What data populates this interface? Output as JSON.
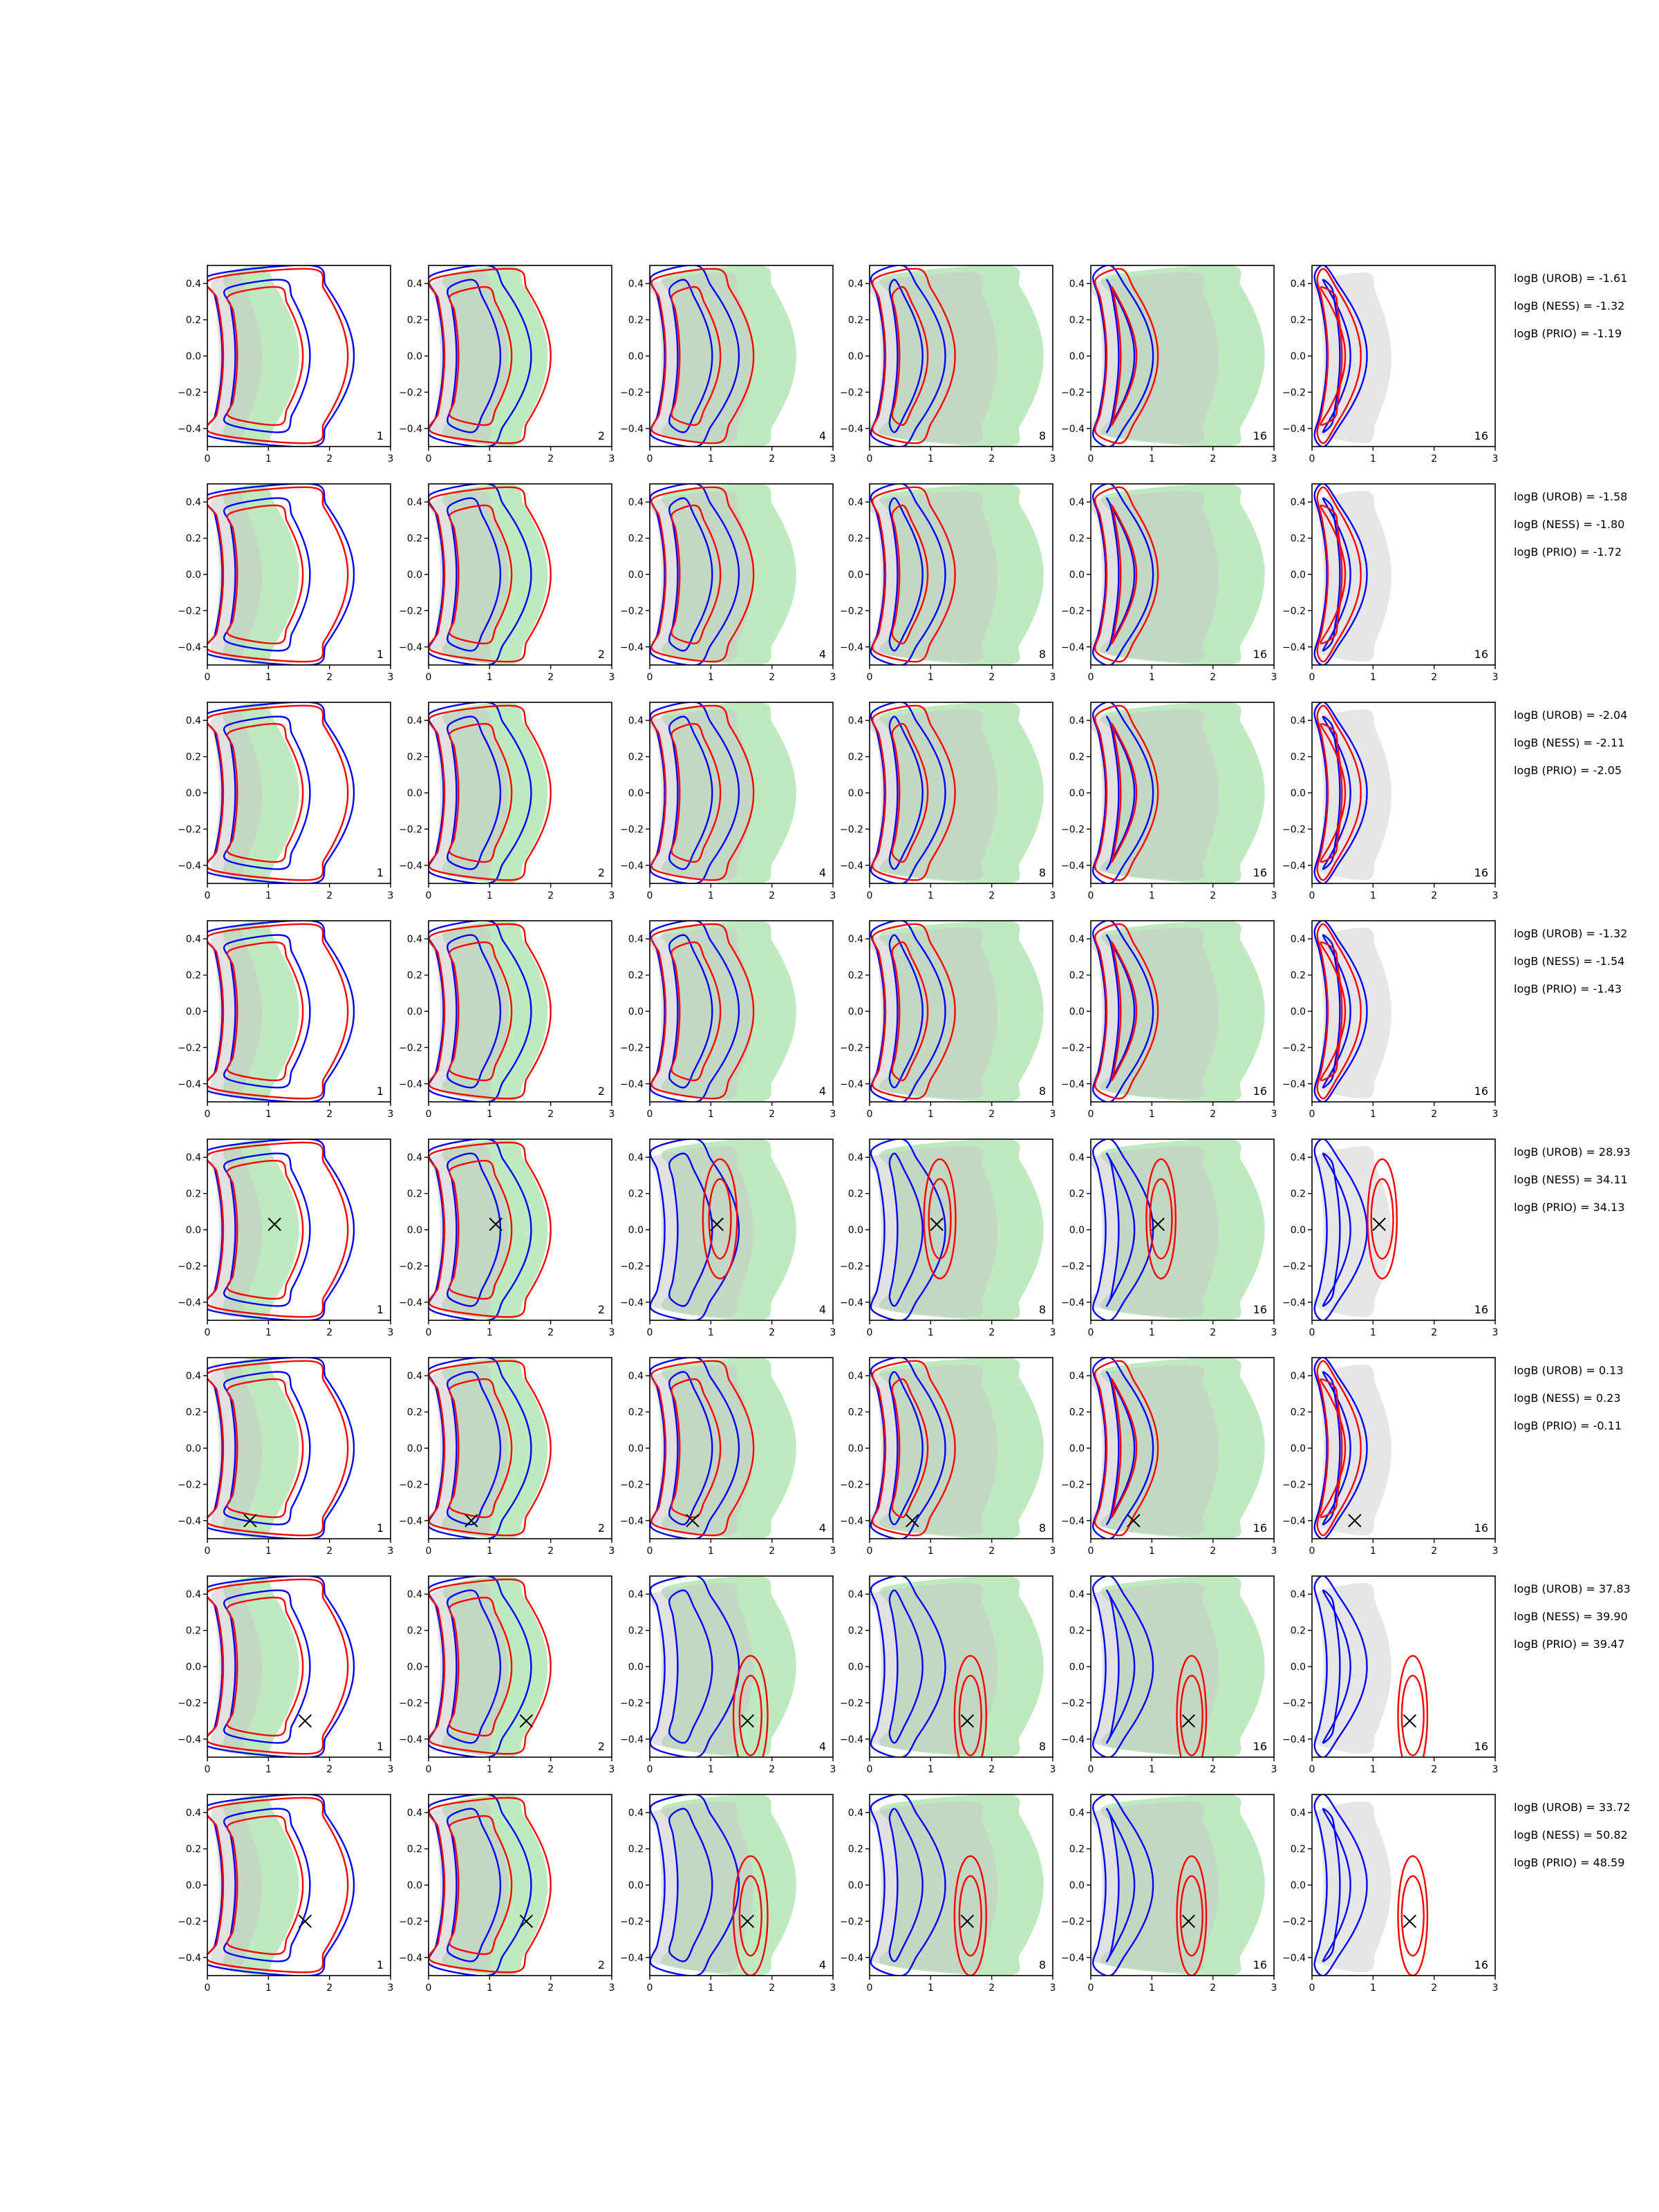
{
  "figure": {
    "layout": {
      "rows": 8,
      "cols": 6
    },
    "colors": {
      "green_fill": "#bfe9bf",
      "gray_fill": "#c8c8c8",
      "light_gray_fill": "#e6e6e8",
      "blue_line": "#0000ff",
      "red_line": "#ff0000",
      "marker": "#000000"
    }
  },
  "chart_data": {
    "type": "contour-grid",
    "xlim": [
      0,
      3
    ],
    "ylim": [
      -0.5,
      0.5
    ],
    "xticks": [
      "0",
      "1",
      "2",
      "3"
    ],
    "yticks": [
      "0.4",
      "0.2",
      "0.0",
      "−0.2",
      "−0.4"
    ],
    "panel_labels": [
      "1",
      "2",
      "4",
      "8",
      "16",
      "16"
    ],
    "legend_placement": "right of each row, outside axes",
    "rows": [
      {
        "markers": null,
        "logB": [
          "logB (UROB) = -1.61",
          "logB (NESS) = -1.32",
          "logB (PRIO) = -1.19"
        ]
      },
      {
        "markers": null,
        "logB": [
          "logB (UROB) = -1.58",
          "logB (NESS) = -1.80",
          "logB (PRIO) = -1.72"
        ]
      },
      {
        "markers": null,
        "logB": [
          "logB (UROB) = -2.04",
          "logB (NESS) = -2.11",
          "logB (PRIO) = -2.05"
        ]
      },
      {
        "markers": null,
        "logB": [
          "logB (UROB) = -1.32",
          "logB (NESS) = -1.54",
          "logB (PRIO) = -1.43"
        ]
      },
      {
        "markers": [
          1.1,
          0.03
        ],
        "logB": [
          "logB (UROB) = 28.93",
          "logB (NESS) = 34.11",
          "logB (PRIO) = 34.13"
        ]
      },
      {
        "markers": [
          0.7,
          -0.4
        ],
        "logB": [
          "logB (UROB) = 0.13",
          "logB (NESS) = 0.23",
          "logB (PRIO) = -0.11"
        ]
      },
      {
        "markers": [
          1.6,
          -0.3
        ],
        "logB": [
          "logB (UROB) = 37.83",
          "logB (NESS) = 39.90",
          "logB (PRIO) = 39.47"
        ]
      },
      {
        "markers": [
          1.6,
          -0.2
        ],
        "logB": [
          "logB (UROB) = 33.72",
          "logB (NESS) = 50.82",
          "logB (PRIO) = 48.59"
        ]
      }
    ]
  }
}
